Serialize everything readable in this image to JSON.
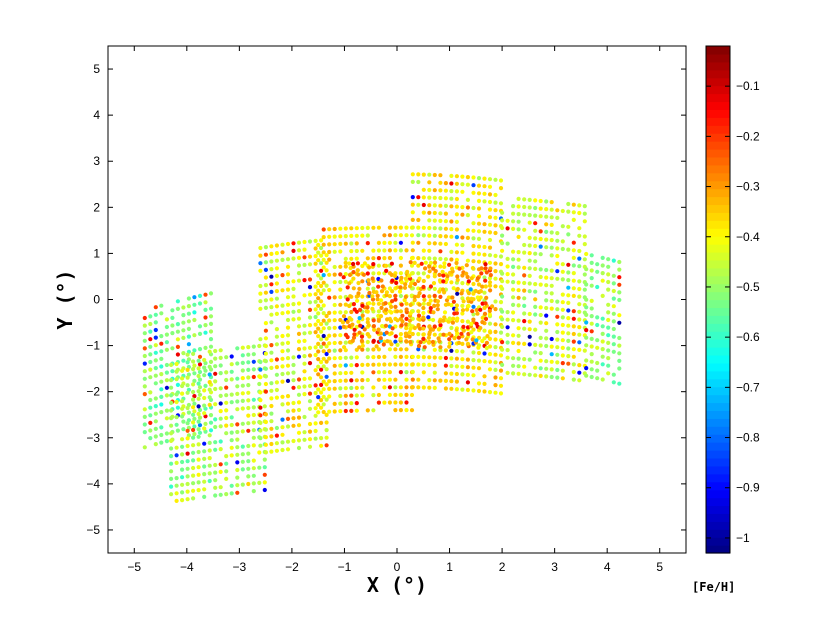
{
  "chart_data": {
    "type": "scatter",
    "title": "",
    "xlabel": "X (°)",
    "ylabel": "Y (°)",
    "xlim": [
      -5.5,
      5.5
    ],
    "ylim": [
      -5.5,
      5.5
    ],
    "xticks": [
      -5,
      -4,
      -3,
      -2,
      -1,
      0,
      1,
      2,
      3,
      4,
      5
    ],
    "yticks": [
      -5,
      -4,
      -3,
      -2,
      -1,
      0,
      1,
      2,
      3,
      4,
      5
    ],
    "grid": false,
    "colorbar": {
      "label": "[Fe/H]",
      "range": [
        -1.03,
        -0.02
      ],
      "ticks": [
        -0.1,
        -0.2,
        -0.3,
        -0.4,
        -0.5,
        -0.6,
        -0.7,
        -0.8,
        -0.9,
        -1
      ],
      "colormap": "jet",
      "placement": "right"
    },
    "point_colors": {
      "dominant": "#d8ec1c",
      "metal_rich": "#e81a00",
      "metal_poor": "#1e3cff"
    },
    "regions": [
      {
        "x": [
          -4.8,
          -3.5
        ],
        "y": [
          -2.4,
          0.6
        ],
        "fe_h_mean": -0.52
      },
      {
        "x": [
          -4.3,
          -2.5
        ],
        "y": [
          -4.0,
          -0.8
        ],
        "fe_h_mean": -0.48
      },
      {
        "x": [
          -2.6,
          -1.3
        ],
        "y": [
          -3.1,
          1.5
        ],
        "fe_h_mean": -0.42
      },
      {
        "x": [
          -1.5,
          0.3
        ],
        "y": [
          -2.4,
          1.6
        ],
        "fe_h_mean": -0.38
      },
      {
        "x": [
          0.3,
          2.0
        ],
        "y": [
          -1.9,
          2.8
        ],
        "fe_h_mean": -0.39
      },
      {
        "x": [
          2.0,
          3.6
        ],
        "y": [
          -1.5,
          2.4
        ],
        "fe_h_mean": -0.44
      },
      {
        "x": [
          3.6,
          4.3
        ],
        "y": [
          -1.2,
          1.6
        ],
        "fe_h_mean": -0.5
      },
      {
        "x": [
          -1.0,
          1.8
        ],
        "y": [
          -1.0,
          0.8
        ],
        "fe_h_mean": -0.33,
        "note": "dense central concentration"
      }
    ]
  }
}
